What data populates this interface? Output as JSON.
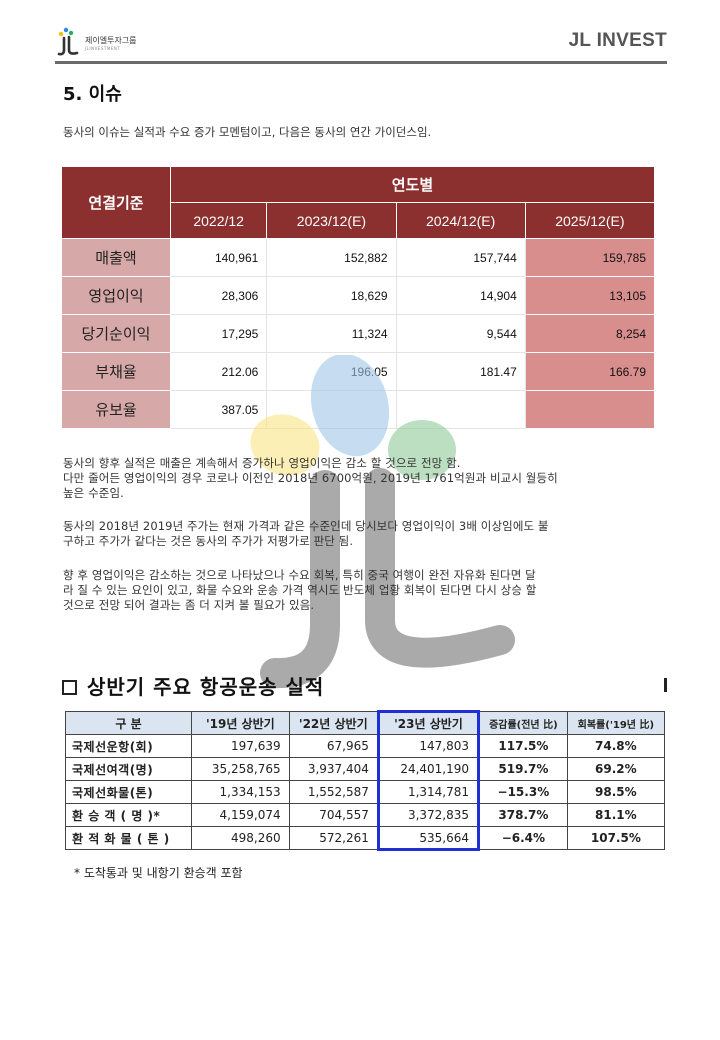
{
  "header": {
    "logo_text": "제이엘투자그룹",
    "logo_sub": "JLINVESTMENT",
    "brand": "JL INVEST",
    "colors": {
      "rule": "#6b6b6b",
      "brand_text": "#555555"
    }
  },
  "section": {
    "title": "5. 이슈",
    "intro": "동사의 이슈는 실적과 수요 증가 모멘텀이고, 다음은 동사의 연간 가이던스임."
  },
  "financial_table": {
    "corner_label": "연결기준",
    "group_label": "연도별",
    "years": [
      "2022/12",
      "2023/12(E)",
      "2024/12(E)",
      "2025/12(E)"
    ],
    "rows": [
      {
        "label": "매출액",
        "values": [
          "140,961",
          "152,882",
          "157,744",
          "159,785"
        ]
      },
      {
        "label": "영업이익",
        "values": [
          "28,306",
          "18,629",
          "14,904",
          "13,105"
        ]
      },
      {
        "label": "당기순이익",
        "values": [
          "17,295",
          "11,324",
          "9,544",
          "8,254"
        ]
      },
      {
        "label": "부채율",
        "values": [
          "212.06",
          "196.05",
          "181.47",
          "166.79"
        ]
      },
      {
        "label": "유보율",
        "values": [
          "387.05",
          "",
          "",
          ""
        ]
      }
    ],
    "colors": {
      "header_bg": "#8b2f2f",
      "label_bg": "#d7a8a8",
      "highlight_bg": "#d98e8e"
    }
  },
  "paragraphs": {
    "p1_line1": "동사의 향후 실적은 매출은 계속해서 증가하나 영업이익은 감소 할 것으로 전망 함.",
    "p1_line2": "다만 줄어든 영업이익의 경우 코로나 이전인 2018년 6700억원, 2019년 1761억원과 비교시 월등히",
    "p1_line3": "높은 수준임.",
    "p2_line1": "동사의 2018년 2019년 주가는 현재 가격과 같은 수준인데 당시보다 영업이익이 3배 이상임에도 불",
    "p2_line2": "구하고 주가가 같다는 것은 동사의 주가가 저평가로 판단 됨.",
    "p3_line1": "향 후 영업이익은 감소하는 것으로 나타났으나 수요 회복, 특히 중국 여행이 완전 자유화 된다면 달",
    "p3_line2": "라 질 수 있는 요인이 있고, 화물 수요와 운송 가격 역시도 반도체 업황 회복이 된다면 다시 상승 할",
    "p3_line3": "것으로 전망 되어 결과는 좀 더 지켜 볼 필요가 있음."
  },
  "air_section": {
    "title": "상반기 주요 항공운송 실적",
    "headers": [
      "구  분",
      "'19년 상반기",
      "'22년 상반기",
      "'23년 상반기",
      "증감률(전년 比)",
      "회복률('19년 比)"
    ],
    "rows": [
      {
        "label": "국제선운항(회)",
        "values": [
          "197,639",
          "67,965",
          "147,803",
          "117.5%",
          "74.8%"
        ]
      },
      {
        "label": "국제선여객(명)",
        "values": [
          "35,258,765",
          "3,937,404",
          "24,401,190",
          "519.7%",
          "69.2%"
        ]
      },
      {
        "label": "국제선화물(톤)",
        "values": [
          "1,334,153",
          "1,552,587",
          "1,314,781",
          "−15.3%",
          "98.5%"
        ]
      },
      {
        "label": "환 승 객 ( 명 )*",
        "values": [
          "4,159,074",
          "704,557",
          "3,372,835",
          "378.7%",
          "81.1%"
        ]
      },
      {
        "label": "환 적 화 물 ( 톤 )",
        "values": [
          "498,260",
          "572,261",
          "535,664",
          "−6.4%",
          "107.5%"
        ]
      }
    ],
    "note": "* 도착통과 및 내항기 환승객 포함",
    "colors": {
      "header_bg": "#dbe5f1",
      "highlight_border": "#1f2fd6"
    }
  },
  "watermark": {
    "icon": "jl-logo-watermark"
  }
}
